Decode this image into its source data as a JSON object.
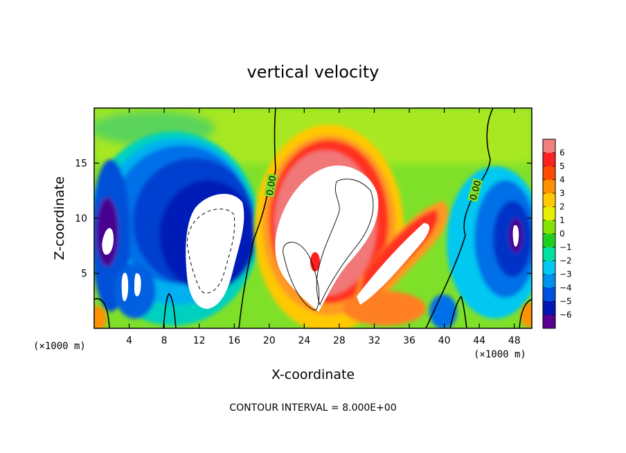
{
  "chart_data": {
    "type": "heatmap",
    "title": "vertical velocity",
    "xlabel": "X-coordinate",
    "ylabel": "Z-coordinate",
    "x_unit": "(×1000 m)",
    "x_ticks": [
      4,
      8,
      12,
      16,
      20,
      24,
      28,
      32,
      36,
      40,
      44,
      48
    ],
    "y_ticks": [
      5,
      10,
      15
    ],
    "xlim": [
      0,
      50
    ],
    "ylim": [
      0,
      20
    ],
    "colorbar": {
      "min": -6,
      "max": 6,
      "labels": [
        "6",
        "5",
        "4",
        "3",
        "2",
        "1",
        "0",
        "−1",
        "−2",
        "−3",
        "−4",
        "−5",
        "−6"
      ],
      "colors": [
        "#f08080",
        "#ff2020",
        "#ff4a00",
        "#ff9000",
        "#ffc800",
        "#e6ee00",
        "#86e200",
        "#20d020",
        "#00e0a0",
        "#00c8f0",
        "#0090f0",
        "#0050e0",
        "#0018b0",
        "#5a0090"
      ]
    },
    "contour_labels": [
      "0.00",
      "0.00"
    ],
    "contour_interval_text": "CONTOUR INTERVAL = 8.000E+00",
    "features": [
      {
        "name": "updraft-core",
        "x": 26.5,
        "z": 9.5,
        "value": 6
      },
      {
        "name": "updraft-arm",
        "x": 34,
        "z": 8,
        "value": 6
      },
      {
        "name": "downdraft-core",
        "x": 13,
        "z": 8.5,
        "value": -6
      },
      {
        "name": "downdraft-left-edge",
        "x": 1.5,
        "z": 8,
        "value": -6
      },
      {
        "name": "downdraft-right-edge",
        "x": 48.5,
        "z": 8,
        "value": -6
      }
    ]
  }
}
